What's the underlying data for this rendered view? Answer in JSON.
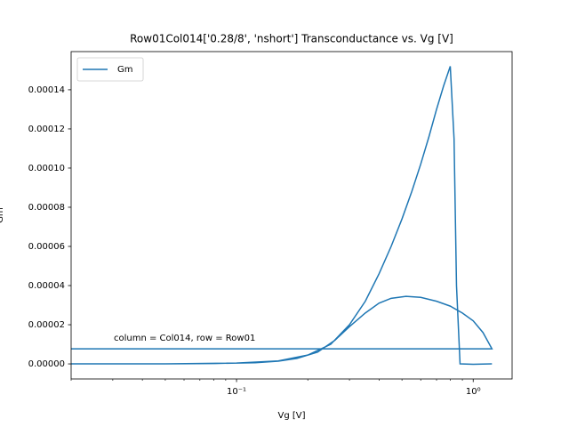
{
  "chart_data": {
    "type": "line",
    "title": "Row01Col014['0.28/8', 'nshort'] Transconductance vs. Vg [V]",
    "xlabel": "Vg [V]",
    "ylabel": "Gm",
    "annotation": "column = Col014, row = Row01",
    "xscale": "log",
    "legend": "upper left",
    "xlim": [
      0.02,
      1.46
    ],
    "ylim": [
      -7.7e-06,
      0.0001595
    ],
    "xticks": [
      {
        "value": 0.1,
        "label": "10⁻¹"
      },
      {
        "value": 1,
        "label": "10⁰"
      }
    ],
    "xminorticks": [
      0.02,
      0.03,
      0.04,
      0.05,
      0.06,
      0.07,
      0.08,
      0.09,
      0.2,
      0.3,
      0.4,
      0.5,
      0.6,
      0.7,
      0.8,
      0.9
    ],
    "yticks": [
      {
        "value": 0,
        "label": "0.00000"
      },
      {
        "value": 2e-05,
        "label": "0.00002"
      },
      {
        "value": 4e-05,
        "label": "0.00004"
      },
      {
        "value": 6e-05,
        "label": "0.00006"
      },
      {
        "value": 8e-05,
        "label": "0.00008"
      },
      {
        "value": 0.0001,
        "label": "0.00010"
      },
      {
        "value": 0.00012,
        "label": "0.00012"
      },
      {
        "value": 0.00014,
        "label": "0.00014"
      }
    ],
    "x": [
      0.02,
      1.2,
      1.1,
      1.0,
      0.9,
      0.8,
      0.7,
      0.6,
      0.52,
      0.45,
      0.4,
      0.35,
      0.3,
      0.26,
      0.22,
      0.18,
      0.15,
      0.12,
      0.08,
      0.05,
      0.02,
      0.05,
      0.1,
      0.15,
      0.2,
      0.25,
      0.3,
      0.35,
      0.4,
      0.45,
      0.5,
      0.55,
      0.6,
      0.65,
      0.7,
      0.75,
      0.8,
      0.83,
      0.85,
      0.88,
      1.0,
      1.2
    ],
    "series": [
      {
        "name": "Gm",
        "color": "#1f77b4",
        "values": [
          7.7e-06,
          7.7e-06,
          1.6e-05,
          2.2e-05,
          2.6e-05,
          2.95e-05,
          3.2e-05,
          3.4e-05,
          3.45e-05,
          3.35e-05,
          3.1e-05,
          2.6e-05,
          1.9e-05,
          1.2e-05,
          6e-06,
          2.8e-06,
          1.4e-06,
          6e-07,
          2e-07,
          5e-08,
          0,
          5e-08,
          4e-07,
          1.5e-06,
          4.5e-06,
          1e-05,
          2e-05,
          3.2e-05,
          4.6e-05,
          6e-05,
          7.4e-05,
          8.8e-05,
          0.000102,
          0.000116,
          0.00013,
          0.000142,
          0.000152,
          0.000115,
          4e-05,
          0,
          -2e-07,
          0
        ]
      }
    ]
  }
}
